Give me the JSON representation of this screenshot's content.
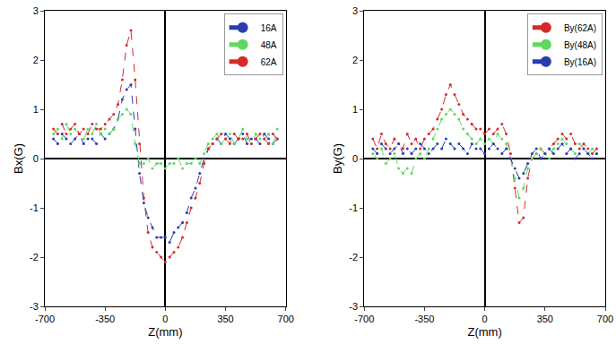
{
  "chart_data": [
    {
      "type": "line",
      "xlabel": "Z(mm)",
      "ylabel": "Bx(G)",
      "legend": "upper right",
      "grid": false,
      "marker": "circle",
      "line_style": "dashed",
      "xlim": [
        -700,
        700
      ],
      "xticks": [
        -700,
        -350,
        0,
        350,
        700
      ],
      "ylim": [
        -3,
        3
      ],
      "yticks": [
        -3,
        -2,
        -1,
        0,
        1,
        2,
        3
      ],
      "x": [
        -650,
        -625,
        -600,
        -575,
        -550,
        -525,
        -500,
        -475,
        -450,
        -425,
        -400,
        -375,
        -350,
        -325,
        -300,
        -275,
        -250,
        -225,
        -200,
        -175,
        -150,
        -125,
        -100,
        -75,
        -50,
        -25,
        0,
        25,
        50,
        75,
        100,
        125,
        150,
        175,
        200,
        225,
        250,
        275,
        300,
        325,
        350,
        375,
        400,
        425,
        450,
        475,
        500,
        525,
        550,
        575,
        600,
        625,
        650
      ],
      "series": [
        {
          "name": "16A",
          "color": "#2b3bb0",
          "values": [
            0.4,
            0.3,
            0.5,
            0.4,
            0.3,
            0.4,
            0.5,
            0.3,
            0.4,
            0.4,
            0.3,
            0.5,
            0.4,
            0.5,
            0.6,
            0.8,
            1.2,
            1.4,
            1.5,
            0.6,
            -0.3,
            -0.9,
            -1.2,
            -1.4,
            -1.6,
            -1.6,
            -1.6,
            -1.7,
            -1.5,
            -1.4,
            -1.3,
            -1.1,
            -0.8,
            -0.6,
            -0.3,
            0.0,
            0.2,
            0.3,
            0.4,
            0.3,
            0.5,
            0.4,
            0.3,
            0.4,
            0.5,
            0.3,
            0.4,
            0.4,
            0.3,
            0.5,
            0.4,
            0.3,
            0.4
          ]
        },
        {
          "name": "48A",
          "color": "#5fd85f",
          "values": [
            0.5,
            0.6,
            0.4,
            0.7,
            0.5,
            0.6,
            0.5,
            0.4,
            0.6,
            0.5,
            0.7,
            0.5,
            0.6,
            0.5,
            0.6,
            0.8,
            0.9,
            1.0,
            0.9,
            0.3,
            -0.1,
            -0.1,
            0.0,
            -0.2,
            -0.1,
            -0.1,
            -0.2,
            -0.1,
            -0.1,
            0.0,
            -0.2,
            -0.1,
            -0.1,
            0.0,
            -0.1,
            0.1,
            0.3,
            0.4,
            0.5,
            0.3,
            0.4,
            0.5,
            0.3,
            0.4,
            0.6,
            0.4,
            0.3,
            0.5,
            0.4,
            0.4,
            0.5,
            0.3,
            0.6
          ]
        },
        {
          "name": "62A",
          "color": "#d42a2a",
          "values": [
            0.6,
            0.5,
            0.7,
            0.5,
            0.6,
            0.7,
            0.5,
            0.6,
            0.5,
            0.7,
            0.6,
            0.6,
            0.7,
            0.8,
            0.9,
            1.1,
            1.6,
            2.3,
            2.6,
            1.6,
            0.3,
            -0.8,
            -1.5,
            -1.8,
            -1.9,
            -2.0,
            -2.1,
            -2.0,
            -1.9,
            -1.8,
            -1.6,
            -1.3,
            -1.0,
            -0.8,
            -0.5,
            -0.1,
            0.2,
            0.3,
            0.4,
            0.5,
            0.4,
            0.3,
            0.5,
            0.4,
            0.4,
            0.5,
            0.3,
            0.4,
            0.5,
            0.4,
            0.3,
            0.5,
            0.4
          ]
        }
      ]
    },
    {
      "type": "line",
      "xlabel": "Z(mm)",
      "ylabel": "By(G)",
      "legend": "upper right",
      "grid": false,
      "marker": "circle",
      "line_style": "dashed",
      "xlim": [
        -700,
        700
      ],
      "xticks": [
        -700,
        -350,
        0,
        350,
        700
      ],
      "ylim": [
        -3,
        3
      ],
      "yticks": [
        -3,
        -2,
        -1,
        0,
        1,
        2,
        3
      ],
      "x": [
        -650,
        -625,
        -600,
        -575,
        -550,
        -525,
        -500,
        -475,
        -450,
        -425,
        -400,
        -375,
        -350,
        -325,
        -300,
        -275,
        -250,
        -225,
        -200,
        -175,
        -150,
        -125,
        -100,
        -75,
        -50,
        -25,
        0,
        25,
        50,
        75,
        100,
        125,
        150,
        175,
        200,
        225,
        250,
        275,
        300,
        325,
        350,
        375,
        400,
        425,
        450,
        475,
        500,
        525,
        550,
        575,
        600,
        625,
        650
      ],
      "series": [
        {
          "name": "By(62A)",
          "color": "#d42a2a",
          "values": [
            0.4,
            0.2,
            0.5,
            0.3,
            0.2,
            0.4,
            0.3,
            0.2,
            0.5,
            0.3,
            0.4,
            0.2,
            0.4,
            0.5,
            0.6,
            0.8,
            1.0,
            1.3,
            1.5,
            1.3,
            1.1,
            0.9,
            0.8,
            0.7,
            0.6,
            0.6,
            0.5,
            0.6,
            0.5,
            0.6,
            0.7,
            0.5,
            0.1,
            -0.6,
            -1.3,
            -1.2,
            -0.4,
            0.0,
            0.1,
            0.2,
            0.1,
            0.2,
            0.3,
            0.4,
            0.5,
            0.4,
            0.5,
            0.3,
            0.2,
            0.3,
            0.2,
            0.1,
            0.2
          ]
        },
        {
          "name": "By(48A)",
          "color": "#5fd85f",
          "values": [
            0.1,
            0.0,
            0.2,
            -0.1,
            0.0,
            0.1,
            -0.2,
            -0.3,
            -0.2,
            -0.3,
            0.0,
            0.1,
            0.0,
            0.2,
            0.4,
            0.6,
            0.8,
            0.9,
            1.0,
            0.9,
            0.8,
            0.6,
            0.5,
            0.4,
            0.3,
            0.4,
            0.3,
            0.4,
            0.3,
            0.5,
            0.4,
            0.3,
            0.0,
            -0.4,
            -0.8,
            -0.6,
            -0.2,
            0.0,
            0.1,
            0.2,
            0.1,
            0.0,
            0.2,
            0.3,
            0.4,
            0.3,
            0.2,
            0.1,
            0.3,
            0.2,
            0.1,
            0.2,
            0.1
          ]
        },
        {
          "name": "By(16A)",
          "color": "#2b3bb0",
          "values": [
            0.2,
            0.1,
            0.3,
            0.2,
            0.1,
            0.2,
            0.3,
            0.1,
            0.2,
            0.1,
            0.2,
            0.3,
            0.2,
            0.1,
            0.2,
            0.3,
            0.2,
            0.4,
            0.3,
            0.2,
            0.3,
            0.2,
            0.1,
            0.3,
            0.2,
            0.2,
            0.1,
            0.2,
            0.3,
            0.2,
            0.1,
            0.2,
            0.0,
            -0.2,
            -0.4,
            -0.3,
            -0.1,
            0.1,
            0.2,
            0.0,
            0.1,
            0.2,
            0.1,
            0.2,
            0.3,
            0.1,
            0.2,
            0.0,
            0.1,
            0.2,
            0.1,
            0.0,
            0.1
          ]
        }
      ]
    }
  ]
}
